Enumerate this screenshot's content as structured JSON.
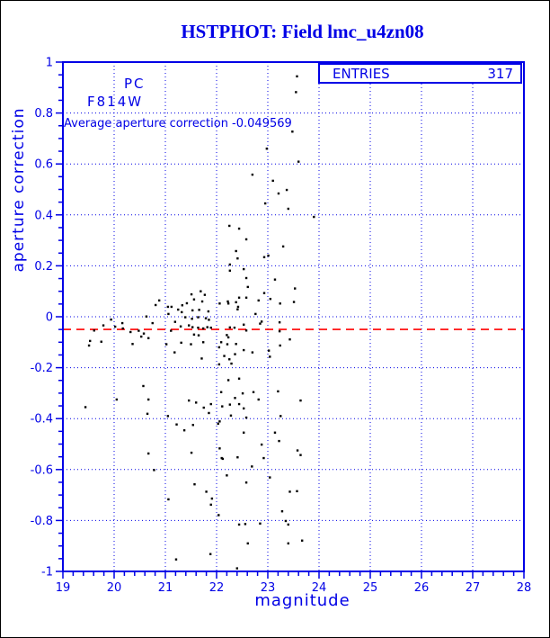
{
  "title": "HSTPHOT: Field lmc_u4zn08",
  "stats_box": {
    "label": "ENTRIES",
    "value": "317"
  },
  "annotations": {
    "detector": "PC",
    "filter": "F814W",
    "average_line": "Average aperture correction -0.049569"
  },
  "colors": {
    "accent_blue": "#0000e6",
    "reference_red": "#ff0000",
    "point_black": "#000000",
    "background": "#ffffff"
  },
  "chart_data": {
    "type": "scatter",
    "title": "HSTPHOT: Field lmc_u4zn08",
    "xlabel": "magnitude",
    "ylabel": "aperture correction",
    "xlim": [
      19,
      28
    ],
    "ylim": [
      -1,
      1
    ],
    "x_ticks": [
      "19",
      "20",
      "21",
      "22",
      "23",
      "24",
      "25",
      "26",
      "27",
      "28"
    ],
    "y_ticks": [
      "1",
      "0.8",
      "0.6",
      "0.4",
      "0.2",
      "0",
      "-0.2",
      "-0.4",
      "-0.6",
      "-0.8",
      "-1"
    ],
    "x_minor_step": 0.2,
    "y_minor_step": 0.05,
    "grid": true,
    "legend_position": "top-right",
    "reference_line": {
      "y": -0.049569,
      "style": "dashed",
      "color": "#ff0000"
    },
    "points": [
      [
        19.51,
        -0.113
      ],
      [
        19.53,
        -0.095
      ],
      [
        19.61,
        -0.054
      ],
      [
        19.75,
        -0.098
      ],
      [
        19.79,
        -0.034
      ],
      [
        19.94,
        -0.011
      ],
      [
        20.02,
        -0.039
      ],
      [
        20.16,
        -0.025
      ],
      [
        20.17,
        -0.046
      ],
      [
        20.32,
        -0.06
      ],
      [
        20.36,
        -0.107
      ],
      [
        20.48,
        -0.055
      ],
      [
        20.53,
        -0.078
      ],
      [
        20.58,
        -0.066
      ],
      [
        20.63,
        0.001
      ],
      [
        20.67,
        -0.084
      ],
      [
        20.75,
        -0.025
      ],
      [
        20.81,
        0.046
      ],
      [
        20.88,
        0.064
      ],
      [
        21.05,
        0.039
      ],
      [
        21.06,
        0.011
      ],
      [
        21.25,
        0.028
      ],
      [
        21.32,
        0.018
      ],
      [
        21.42,
        0.053
      ],
      [
        21.51,
        0.088
      ],
      [
        21.69,
        0.1
      ],
      [
        21.77,
        0.086
      ],
      [
        21.56,
        0.068
      ],
      [
        21.72,
        0.06
      ],
      [
        22.22,
        0.06
      ],
      [
        22.38,
        0.057
      ],
      [
        21.12,
        0.039
      ],
      [
        21.33,
        0.045
      ],
      [
        21.53,
        0.025
      ],
      [
        21.66,
        0.027
      ],
      [
        21.84,
        0.021
      ],
      [
        22.41,
        0.029
      ],
      [
        22.42,
        0.039
      ],
      [
        21.39,
        -0.002
      ],
      [
        21.52,
        -0.008
      ],
      [
        21.64,
        -0.002
      ],
      [
        21.79,
        -0.006
      ],
      [
        21.85,
        -0.012
      ],
      [
        21.19,
        -0.02
      ],
      [
        21.3,
        -0.038
      ],
      [
        21.46,
        -0.034
      ],
      [
        21.53,
        -0.041
      ],
      [
        21.64,
        -0.043
      ],
      [
        21.74,
        -0.046
      ],
      [
        21.82,
        -0.041
      ],
      [
        21.89,
        -0.043
      ],
      [
        21.11,
        -0.055
      ],
      [
        21.56,
        -0.07
      ],
      [
        21.65,
        -0.073
      ],
      [
        21.31,
        -0.102
      ],
      [
        21.5,
        -0.108
      ],
      [
        21.74,
        -0.1
      ],
      [
        21.02,
        -0.108
      ],
      [
        21.18,
        -0.14
      ],
      [
        21.71,
        -0.164
      ],
      [
        22.05,
        -0.12
      ],
      [
        22.09,
        -0.1
      ],
      [
        22.21,
        -0.108
      ],
      [
        22.35,
        -0.043
      ],
      [
        22.36,
        -0.147
      ],
      [
        22.25,
        -0.167
      ],
      [
        23.3,
        0.276
      ],
      [
        22.38,
        0.258
      ],
      [
        22.41,
        0.229
      ],
      [
        22.93,
        0.234
      ],
      [
        23.01,
        0.24
      ],
      [
        22.26,
        0.205
      ],
      [
        22.53,
        0.187
      ],
      [
        22.26,
        0.181
      ],
      [
        22.58,
        0.152
      ],
      [
        23.14,
        0.146
      ],
      [
        22.61,
        0.117
      ],
      [
        22.93,
        0.093
      ],
      [
        23.53,
        0.111
      ],
      [
        22.44,
        0.075
      ],
      [
        22.58,
        0.075
      ],
      [
        22.82,
        0.064
      ],
      [
        22.06,
        0.052
      ],
      [
        22.23,
        0.052
      ],
      [
        23.05,
        0.07
      ],
      [
        23.24,
        0.052
      ],
      [
        23.51,
        0.058
      ],
      [
        22.76,
        0.011
      ],
      [
        22.88,
        -0.019
      ],
      [
        23.23,
        -0.022
      ],
      [
        22.53,
        -0.031
      ],
      [
        22.26,
        -0.042
      ],
      [
        22.58,
        -0.054
      ],
      [
        22.85,
        -0.027
      ],
      [
        22.2,
        -0.072
      ],
      [
        22.23,
        -0.081
      ],
      [
        23.23,
        -0.057
      ],
      [
        23.43,
        -0.089
      ],
      [
        22.38,
        -0.107
      ],
      [
        23.24,
        -0.113
      ],
      [
        22.53,
        -0.131
      ],
      [
        22.7,
        -0.14
      ],
      [
        23.02,
        -0.133
      ],
      [
        23.04,
        -0.157
      ],
      [
        22.15,
        -0.154
      ],
      [
        22.29,
        -0.184
      ],
      [
        22.05,
        -0.187
      ],
      [
        22.44,
        -0.243
      ],
      [
        22.23,
        -0.249
      ],
      [
        23.57,
        0.944
      ],
      [
        23.55,
        0.882
      ],
      [
        23.48,
        0.727
      ],
      [
        22.98,
        0.66
      ],
      [
        23.6,
        0.609
      ],
      [
        22.7,
        0.558
      ],
      [
        23.1,
        0.534
      ],
      [
        23.37,
        0.498
      ],
      [
        23.21,
        0.484
      ],
      [
        22.95,
        0.445
      ],
      [
        23.4,
        0.424
      ],
      [
        23.9,
        0.392
      ],
      [
        22.44,
        0.346
      ],
      [
        22.25,
        0.357
      ],
      [
        22.58,
        0.304
      ],
      [
        19.44,
        -0.355
      ],
      [
        20.05,
        -0.325
      ],
      [
        20.57,
        -0.272
      ],
      [
        20.67,
        -0.325
      ],
      [
        20.65,
        -0.381
      ],
      [
        21.05,
        -0.39
      ],
      [
        21.46,
        -0.329
      ],
      [
        21.6,
        -0.337
      ],
      [
        21.75,
        -0.357
      ],
      [
        21.89,
        -0.343
      ],
      [
        22.09,
        -0.296
      ],
      [
        21.85,
        -0.378
      ],
      [
        21.22,
        -0.423
      ],
      [
        21.37,
        -0.446
      ],
      [
        21.54,
        -0.425
      ],
      [
        22.06,
        -0.411
      ],
      [
        22.03,
        -0.42
      ],
      [
        21.51,
        -0.534
      ],
      [
        22.1,
        -0.555
      ],
      [
        20.67,
        -0.537
      ],
      [
        20.78,
        -0.602
      ],
      [
        21.57,
        -0.658
      ],
      [
        21.8,
        -0.687
      ],
      [
        21.91,
        -0.714
      ],
      [
        21.89,
        -0.738
      ],
      [
        21.06,
        -0.717
      ],
      [
        22.04,
        -0.779
      ],
      [
        21.21,
        -0.953
      ],
      [
        21.88,
        -0.932
      ],
      [
        22.51,
        -0.301
      ],
      [
        22.72,
        -0.296
      ],
      [
        23.2,
        -0.293
      ],
      [
        22.36,
        -0.319
      ],
      [
        22.82,
        -0.325
      ],
      [
        23.64,
        -0.329
      ],
      [
        22.11,
        -0.352
      ],
      [
        22.26,
        -0.345
      ],
      [
        22.44,
        -0.343
      ],
      [
        22.53,
        -0.36
      ],
      [
        22.28,
        -0.388
      ],
      [
        22.58,
        -0.396
      ],
      [
        23.25,
        -0.39
      ],
      [
        22.53,
        -0.455
      ],
      [
        23.14,
        -0.455
      ],
      [
        23.22,
        -0.488
      ],
      [
        22.88,
        -0.502
      ],
      [
        22.06,
        -0.517
      ],
      [
        23.58,
        -0.525
      ],
      [
        22.41,
        -0.552
      ],
      [
        22.92,
        -0.555
      ],
      [
        23.64,
        -0.543
      ],
      [
        22.12,
        -0.558
      ],
      [
        22.69,
        -0.588
      ],
      [
        22.2,
        -0.623
      ],
      [
        22.58,
        -0.651
      ],
      [
        23.04,
        -0.631
      ],
      [
        23.43,
        -0.687
      ],
      [
        23.57,
        -0.685
      ],
      [
        23.28,
        -0.764
      ],
      [
        23.35,
        -0.802
      ],
      [
        22.44,
        -0.816
      ],
      [
        22.56,
        -0.814
      ],
      [
        22.85,
        -0.812
      ],
      [
        23.4,
        -0.816
      ],
      [
        22.61,
        -0.89
      ],
      [
        23.4,
        -0.89
      ],
      [
        23.67,
        -0.879
      ],
      [
        22.4,
        -0.988
      ]
    ]
  }
}
